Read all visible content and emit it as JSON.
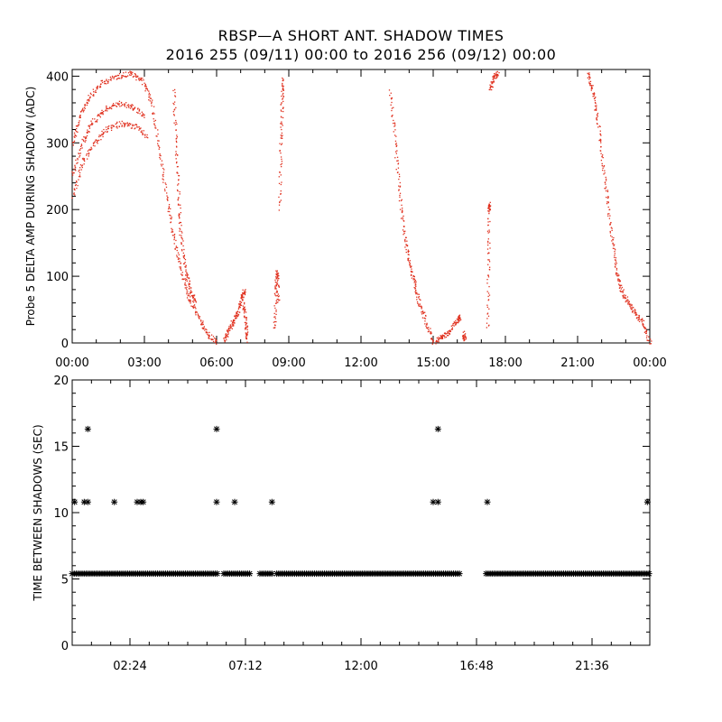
{
  "title": {
    "line1": "RBSP—A SHORT ANT. SHADOW TIMES",
    "line2": "2016 255 (09/11) 00:00 to 2016 256 (09/12) 00:00"
  },
  "colors": {
    "top_points": "#e0301e",
    "bottom_points": "#000000",
    "axes": "#000000"
  },
  "chart_data": [
    {
      "type": "scatter",
      "ylabel": "Probe 5 DELTA AMP DURING SHADOW (ADC)",
      "xlabel": "",
      "xlim_hours": [
        0,
        24
      ],
      "ylim": [
        0,
        410
      ],
      "x_ticks": [
        {
          "h": 0,
          "label": "00:00"
        },
        {
          "h": 3,
          "label": "03:00"
        },
        {
          "h": 6,
          "label": "06:00"
        },
        {
          "h": 9,
          "label": "09:00"
        },
        {
          "h": 12,
          "label": "12:00"
        },
        {
          "h": 15,
          "label": "15:00"
        },
        {
          "h": 18,
          "label": "18:00"
        },
        {
          "h": 21,
          "label": "21:00"
        },
        {
          "h": 24,
          "label": "00:00"
        }
      ],
      "y_ticks": [
        0,
        100,
        200,
        300,
        400
      ],
      "color": "#e0301e",
      "segments": [
        {
          "hours": [
            0.0,
            0.3,
            0.7,
            1.2,
            1.8,
            2.4,
            2.9,
            3.3,
            3.6,
            3.9,
            4.2,
            4.5,
            4.8,
            5.2,
            5.6,
            6.0
          ],
          "values": [
            300,
            340,
            370,
            390,
            400,
            405,
            395,
            360,
            290,
            220,
            160,
            110,
            70,
            40,
            15,
            0
          ]
        },
        {
          "hours": [
            0.0,
            0.4,
            0.8,
            1.3,
            1.9,
            2.5,
            3.0
          ],
          "values": [
            250,
            300,
            330,
            350,
            360,
            355,
            340
          ]
        },
        {
          "hours": [
            0.0,
            0.4,
            0.9,
            1.4,
            2.0,
            2.6,
            3.1
          ],
          "values": [
            220,
            270,
            300,
            320,
            330,
            325,
            310
          ]
        },
        {
          "hours": [
            4.2,
            4.3,
            4.4,
            4.5,
            4.7,
            4.9,
            5.1
          ],
          "values": [
            380,
            300,
            220,
            160,
            110,
            80,
            60
          ]
        },
        {
          "hours": [
            6.3,
            6.5,
            6.7,
            6.9,
            7.05,
            7.15
          ],
          "values": [
            5,
            20,
            35,
            50,
            70,
            80
          ]
        },
        {
          "hours": [
            7.1,
            7.2,
            7.25
          ],
          "values": [
            60,
            30,
            5
          ]
        },
        {
          "hours": [
            8.4,
            8.45,
            8.5,
            8.55
          ],
          "values": [
            20,
            80,
            110,
            60
          ]
        },
        {
          "hours": [
            8.6,
            8.65,
            8.7,
            8.75
          ],
          "values": [
            200,
            300,
            360,
            400
          ]
        },
        {
          "hours": [
            13.2,
            13.4,
            13.6,
            13.8,
            14.0,
            14.2,
            14.4,
            14.7,
            15.0
          ],
          "values": [
            380,
            300,
            220,
            160,
            120,
            90,
            60,
            30,
            0
          ]
        },
        {
          "hours": [
            15.1,
            15.4,
            15.7,
            16.0,
            16.1
          ],
          "values": [
            3,
            10,
            20,
            35,
            40
          ]
        },
        {
          "hours": [
            16.25,
            16.3
          ],
          "values": [
            15,
            5
          ]
        },
        {
          "hours": [
            17.25,
            17.28,
            17.3,
            17.33
          ],
          "values": [
            20,
            120,
            200,
            210
          ]
        },
        {
          "hours": [
            17.35,
            17.5,
            17.7
          ],
          "values": [
            380,
            400,
            405
          ]
        },
        {
          "hours": [
            21.4,
            21.6,
            21.8,
            22.0,
            22.2,
            22.4,
            22.6,
            22.8,
            23.1,
            23.4,
            23.7,
            24.0
          ],
          "values": [
            405,
            380,
            340,
            280,
            220,
            160,
            110,
            80,
            60,
            45,
            30,
            0
          ]
        }
      ]
    },
    {
      "type": "scatter",
      "ylabel": "TIME BETWEEN SHADOWS (SEC)",
      "xlabel": "",
      "xlim_hours": [
        0,
        24
      ],
      "ylim": [
        0,
        20
      ],
      "x_ticks": [
        {
          "h": 2.4,
          "label": "02:24"
        },
        {
          "h": 7.2,
          "label": "07:12"
        },
        {
          "h": 12.0,
          "label": "12:00"
        },
        {
          "h": 16.8,
          "label": "16:48"
        },
        {
          "h": 21.6,
          "label": "21:36"
        }
      ],
      "y_ticks": [
        0,
        5,
        10,
        15,
        20
      ],
      "color": "#000000",
      "marker": "*",
      "baseline_value": 5.4,
      "baseline_ranges_hours": [
        [
          0.0,
          6.05
        ],
        [
          6.3,
          7.4
        ],
        [
          7.8,
          8.3
        ],
        [
          8.5,
          16.1
        ],
        [
          17.2,
          24.0
        ]
      ],
      "outliers": [
        {
          "h": 0.1,
          "v": 10.8
        },
        {
          "h": 0.5,
          "v": 10.8
        },
        {
          "h": 0.65,
          "v": 10.8
        },
        {
          "h": 0.65,
          "v": 16.3
        },
        {
          "h": 1.75,
          "v": 10.8
        },
        {
          "h": 2.7,
          "v": 10.8
        },
        {
          "h": 2.85,
          "v": 10.8
        },
        {
          "h": 2.95,
          "v": 10.8
        },
        {
          "h": 6.0,
          "v": 10.8
        },
        {
          "h": 6.0,
          "v": 16.3
        },
        {
          "h": 6.75,
          "v": 10.8
        },
        {
          "h": 8.3,
          "v": 10.8
        },
        {
          "h": 15.0,
          "v": 10.8
        },
        {
          "h": 15.2,
          "v": 10.8
        },
        {
          "h": 15.2,
          "v": 16.3
        },
        {
          "h": 17.25,
          "v": 10.8
        },
        {
          "h": 23.9,
          "v": 10.8
        }
      ]
    }
  ]
}
